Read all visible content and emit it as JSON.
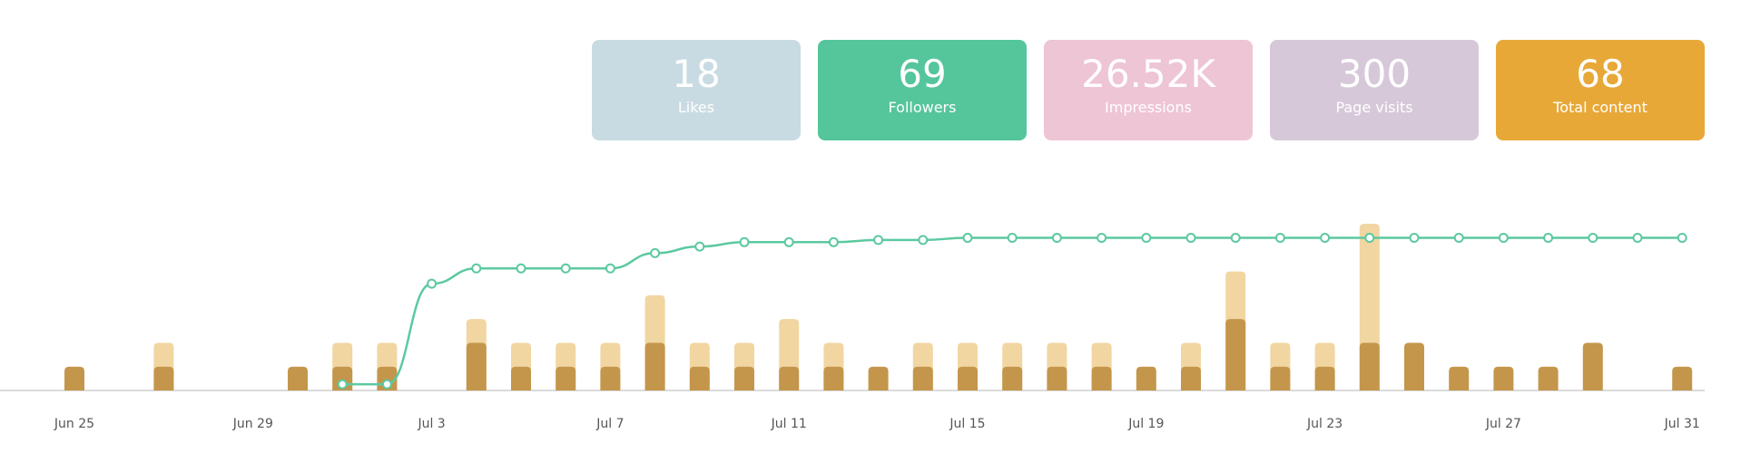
{
  "cards": [
    {
      "value": "18",
      "label": "Likes",
      "color": "#c9dbe2"
    },
    {
      "value": "69",
      "label": "Followers",
      "color": "#55c59c"
    },
    {
      "value": "26.52K",
      "label": "Impressions",
      "color": "#eec5d5"
    },
    {
      "value": "300",
      "label": "Page visits",
      "color": "#d6c8d9"
    },
    {
      "value": "68",
      "label": "Total content",
      "color": "#e8a838"
    }
  ],
  "chart_data": {
    "type": "bar-line",
    "categories": [
      "Jun 25",
      null,
      null,
      null,
      "Jun 29",
      null,
      null,
      null,
      "Jul 3",
      null,
      null,
      null,
      "Jul 7",
      null,
      null,
      null,
      "Jul 11",
      null,
      null,
      null,
      "Jul 15",
      null,
      null,
      null,
      "Jul 19",
      null,
      null,
      null,
      "Jul 23",
      null,
      null,
      null,
      "Jul 27",
      null,
      null,
      null,
      "Jul 31"
    ],
    "series": [
      {
        "type": "bar",
        "color": "#f1d6a2",
        "values": [
          0,
          0,
          2,
          0,
          0,
          0,
          2,
          2,
          0,
          3,
          2,
          2,
          2,
          4,
          2,
          2,
          3,
          2,
          0,
          2,
          2,
          2,
          2,
          2,
          0,
          2,
          5,
          2,
          2,
          7,
          0,
          0,
          0,
          0,
          0,
          0,
          0
        ]
      },
      {
        "type": "bar",
        "color": "#c4964b",
        "values": [
          1,
          0,
          1,
          0,
          0,
          1,
          1,
          1,
          0,
          2,
          1,
          1,
          1,
          2,
          1,
          1,
          1,
          1,
          1,
          1,
          1,
          1,
          1,
          1,
          1,
          1,
          3,
          1,
          1,
          2,
          2,
          1,
          1,
          1,
          2,
          0,
          1
        ]
      },
      {
        "type": "line",
        "color": "#5cc9a0",
        "values": [
          null,
          null,
          null,
          null,
          null,
          null,
          2,
          2,
          48,
          55,
          55,
          55,
          55,
          62,
          65,
          67,
          67,
          67,
          68,
          68,
          69,
          69,
          69,
          69,
          69,
          69,
          69,
          69,
          69,
          69,
          69,
          69,
          69,
          69,
          69,
          69,
          69
        ]
      }
    ]
  }
}
